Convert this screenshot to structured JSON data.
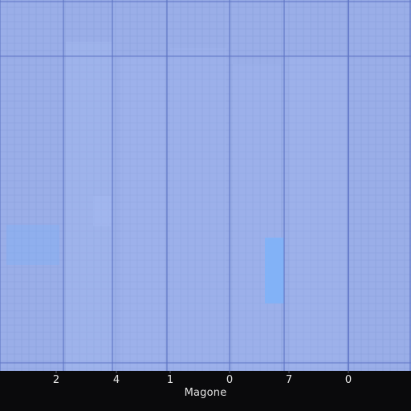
{
  "chart_data": {
    "type": "bar",
    "title": "",
    "xlabel": "Magone",
    "ylabel": "",
    "x_tick_labels": [
      "2",
      "4",
      "1",
      "0",
      "7",
      "0"
    ],
    "grid": "on",
    "legend": "none",
    "colors": {
      "plot_background": "#9aaee8",
      "grid_minor": "#8aa0dc",
      "grid_major": "#5d73c4",
      "bar_fill": "#a6bcf2",
      "highlight_fill": "#7fb2f8",
      "page_background": "#0a0a0c",
      "text": "#e6e6e6"
    }
  }
}
